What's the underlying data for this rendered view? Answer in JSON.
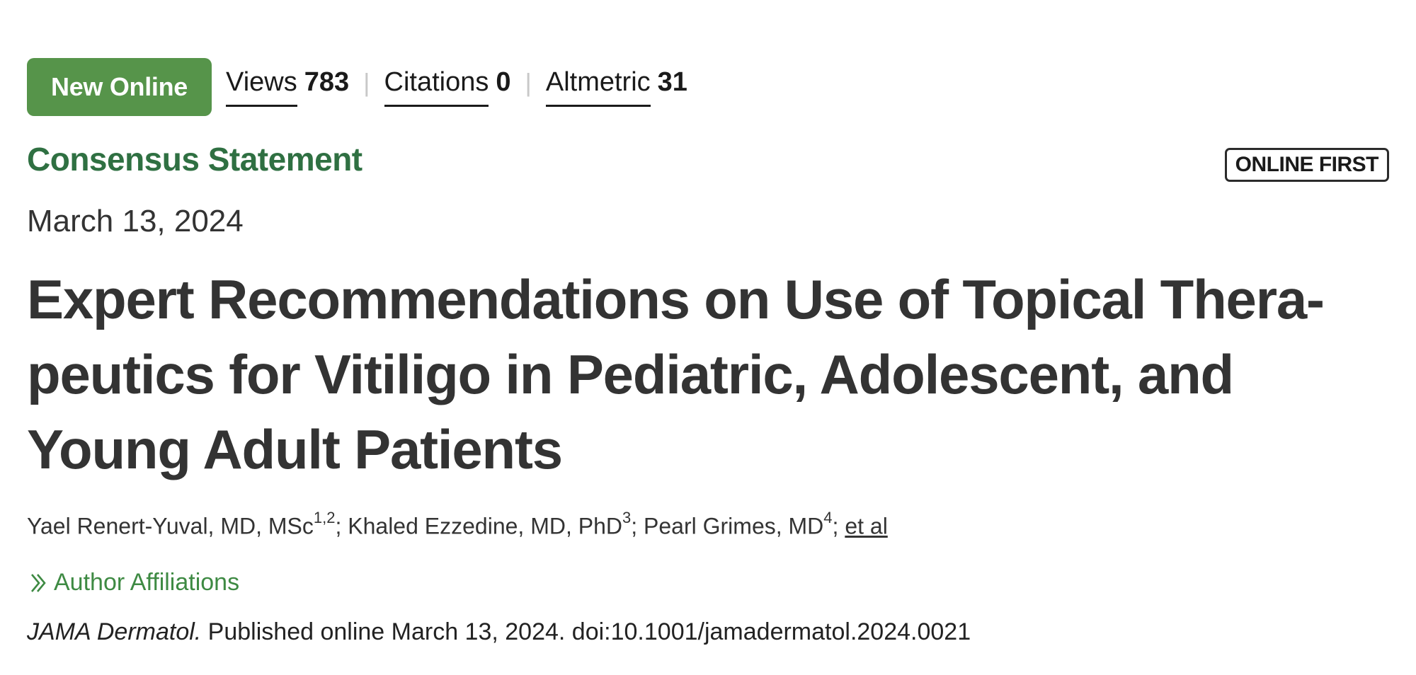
{
  "header": {
    "badge": "New Online",
    "metrics": [
      {
        "label": "Views",
        "value": "783"
      },
      {
        "label": "Citations",
        "value": "0"
      },
      {
        "label": "Altmetric",
        "value": "31"
      }
    ],
    "separator": "|"
  },
  "article": {
    "section": "Consensus Statement",
    "online_first": "ONLINE FIRST",
    "date": "March 13, 2024",
    "title_lines": [
      "Expert Recommendations on Use of Topical Thera-",
      "peutics for Vitiligo in Pediatric, Adolescent, and",
      "Young Adult Patients"
    ],
    "authors": [
      {
        "name": "Yael Renert-Yuval, MD, MSc",
        "sup": "1,2"
      },
      {
        "name": "Khaled Ezzedine, MD, PhD",
        "sup": "3"
      },
      {
        "name": "Pearl Grimes, MD",
        "sup": "4"
      }
    ],
    "author_sep": "; ",
    "et_al": "et al",
    "affiliations_label": "Author Affiliations",
    "citation": {
      "journal": "JAMA Dermatol.",
      "text": " Published online March 13, 2024. doi:10.1001/jamadermatol.2024.0021"
    }
  },
  "colors": {
    "badge_bg": "#56944a",
    "section": "#2f7042",
    "link_green": "#3e8a43"
  }
}
